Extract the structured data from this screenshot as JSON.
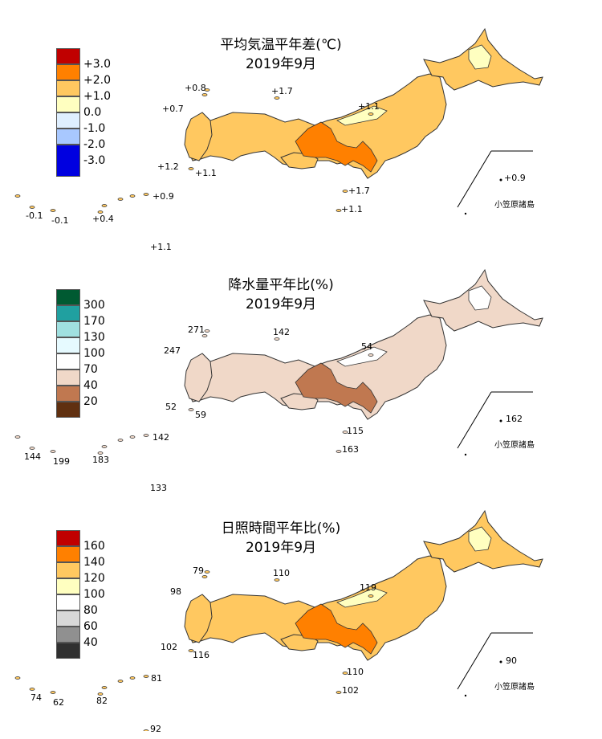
{
  "panels": [
    {
      "key": "temp",
      "title": "平均気温平年差(℃)",
      "subtitle": "2019年9月",
      "legend": {
        "colors": [
          "#c00000",
          "#ff8000",
          "#ffc860",
          "#ffffc0",
          "#dfefff",
          "#a8c8ff",
          "#0000e0"
        ],
        "ticks": [
          "+3.0",
          "+2.0",
          "+1.0",
          "0.0",
          "-1.0",
          "-2.0",
          "-3.0"
        ]
      },
      "stations": [
        "+0.8",
        "+1.7",
        "+0.7",
        "+1.1",
        "+1.2",
        "+1.1",
        "+0.9",
        "-0.1",
        "-0.1",
        "+0.4",
        "+1.7",
        "+1.1",
        "+1.1",
        "+0.9"
      ],
      "bonin_label": "小笠原諸島",
      "fills": {
        "land": "#ffc860",
        "hot": "#ff8000",
        "mild": "#ffffc0"
      }
    },
    {
      "key": "precip",
      "title": "降水量平年比(%)",
      "subtitle": "2019年9月",
      "legend": {
        "colors": [
          "#005a32",
          "#20a0a0",
          "#a0e0e0",
          "#e6faff",
          "#ffffff",
          "#f0d8c8",
          "#c07850",
          "#603010"
        ],
        "ticks": [
          "300",
          "170",
          "130",
          "100",
          "70",
          "40",
          "20"
        ]
      },
      "stations": [
        "271",
        "142",
        "247",
        "54",
        "52",
        "59",
        "115",
        "163",
        "142",
        "144",
        "199",
        "183",
        "133",
        "162"
      ],
      "bonin_label": "小笠原諸島",
      "fills": {
        "land": "#f0d8c8",
        "hot": "#c07850",
        "mild": "#ffffff"
      }
    },
    {
      "key": "sun",
      "title": "日照時間平年比(%)",
      "subtitle": "2019年9月",
      "legend": {
        "colors": [
          "#c00000",
          "#ff8000",
          "#ffc860",
          "#ffffc0",
          "#ffffff",
          "#d8d8d8",
          "#909090",
          "#303030"
        ],
        "ticks": [
          "160",
          "140",
          "120",
          "100",
          "80",
          "60",
          "40"
        ]
      },
      "stations": [
        "79",
        "110",
        "98",
        "119",
        "102",
        "116",
        "110",
        "102",
        "81",
        "74",
        "62",
        "82",
        "92",
        "90"
      ],
      "bonin_label": "小笠原諸島",
      "fills": {
        "land": "#ffc860",
        "hot": "#ff8000",
        "mild": "#ffffc0"
      }
    }
  ]
}
